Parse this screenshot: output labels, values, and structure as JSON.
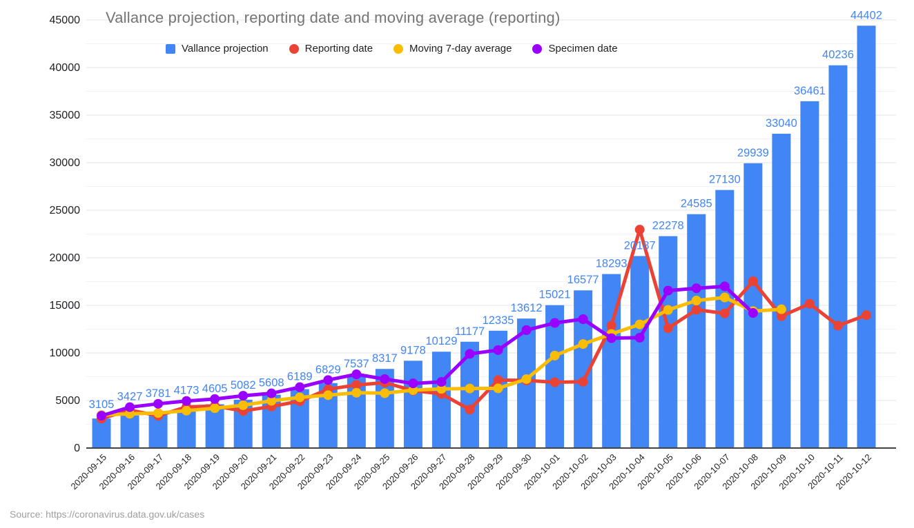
{
  "title": "Vallance projection, reporting date and moving average (reporting)",
  "source": "Source: https://coronavirus.data.gov.uk/cases",
  "colors": {
    "bar_blue": "#4285F4",
    "line_red": "#EA4335",
    "line_yellow": "#FBBC04",
    "line_purple": "#9900FF",
    "title_gray": "#757575",
    "axis_text": "#202124",
    "bar_label_blue": "#4285F4",
    "grid_major": "#e3e3e3",
    "grid_minor": "#f2f2f2",
    "axis_line": "#424242",
    "source_gray": "#9e9e9e"
  },
  "legend": [
    {
      "label": "Vallance projection",
      "shape": "square",
      "color": "#4285F4"
    },
    {
      "label": "Reporting date",
      "shape": "circle",
      "color": "#EA4335"
    },
    {
      "label": "Moving 7-day average",
      "shape": "circle",
      "color": "#FBBC04"
    },
    {
      "label": "Specimen date",
      "shape": "circle",
      "color": "#9900FF"
    }
  ],
  "chart_data": {
    "type": "bar",
    "subtype": "combo-bar-line",
    "title": "Vallance projection, reporting date and moving average (reporting)",
    "xlabel": "",
    "ylabel": "",
    "ylim": [
      0,
      45000
    ],
    "y_tick_step": 5000,
    "y_minor_step": 2500,
    "y_tick_labels": [
      "0",
      "5000",
      "10000",
      "15000",
      "20000",
      "25000",
      "30000",
      "35000",
      "40000",
      "45000"
    ],
    "grid": true,
    "legend_position": "top",
    "categories": [
      "2020-09-15",
      "2020-09-16",
      "2020-09-17",
      "2020-09-18",
      "2020-09-19",
      "2020-09-20",
      "2020-09-21",
      "2020-09-22",
      "2020-09-23",
      "2020-09-24",
      "2020-09-25",
      "2020-09-26",
      "2020-09-27",
      "2020-09-28",
      "2020-09-29",
      "2020-09-30",
      "2020-10-01",
      "2020-10-02",
      "2020-10-03",
      "2020-10-04",
      "2020-10-05",
      "2020-10-06",
      "2020-10-07",
      "2020-10-08",
      "2020-10-09",
      "2020-10-10",
      "2020-10-11",
      "2020-10-12"
    ],
    "series": [
      {
        "name": "Vallance projection",
        "type": "bar",
        "color": "#4285F4",
        "data_labels": true,
        "values": [
          3105,
          3427,
          3781,
          4173,
          4605,
          5082,
          5608,
          6189,
          6829,
          7537,
          8317,
          9178,
          10129,
          11177,
          12335,
          13612,
          15021,
          16577,
          18293,
          20187,
          22278,
          24585,
          27130,
          29939,
          33040,
          36461,
          40236,
          44402
        ]
      },
      {
        "name": "Reporting date",
        "type": "line",
        "color": "#EA4335",
        "estimated": true,
        "values": [
          3105,
          3991,
          3395,
          4322,
          4422,
          3899,
          4368,
          4926,
          6178,
          6634,
          6874,
          6042,
          5693,
          4044,
          7143,
          7108,
          6914,
          6968,
          12872,
          22961,
          12594,
          14542,
          14162,
          17540,
          13864,
          15166,
          12872,
          13972
        ]
      },
      {
        "name": "Moving 7-day average",
        "type": "line",
        "color": "#FBBC04",
        "estimated": true,
        "values": [
          3466,
          3598,
          3679,
          3929,
          4189,
          4501,
          4964,
          5329,
          5560,
          5816,
          5770,
          6087,
          6220,
          6260,
          6273,
          7249,
          9716,
          10937,
          11994,
          13002,
          14520,
          15505,
          15833,
          14391,
          14588,
          null,
          null,
          null
        ]
      },
      {
        "name": "Specimen date",
        "type": "line",
        "color": "#9900FF",
        "estimated": true,
        "values": [
          3400,
          4300,
          4650,
          4950,
          5150,
          5500,
          5750,
          6400,
          7150,
          7750,
          7250,
          6800,
          6950,
          9900,
          10300,
          12400,
          13150,
          13550,
          11550,
          11600,
          16550,
          16800,
          17000,
          14200,
          null,
          null,
          null,
          null
        ]
      }
    ],
    "note": "Bar values shown as blue data labels on chart; line series values estimated from pixel positions (no labels on chart)."
  }
}
